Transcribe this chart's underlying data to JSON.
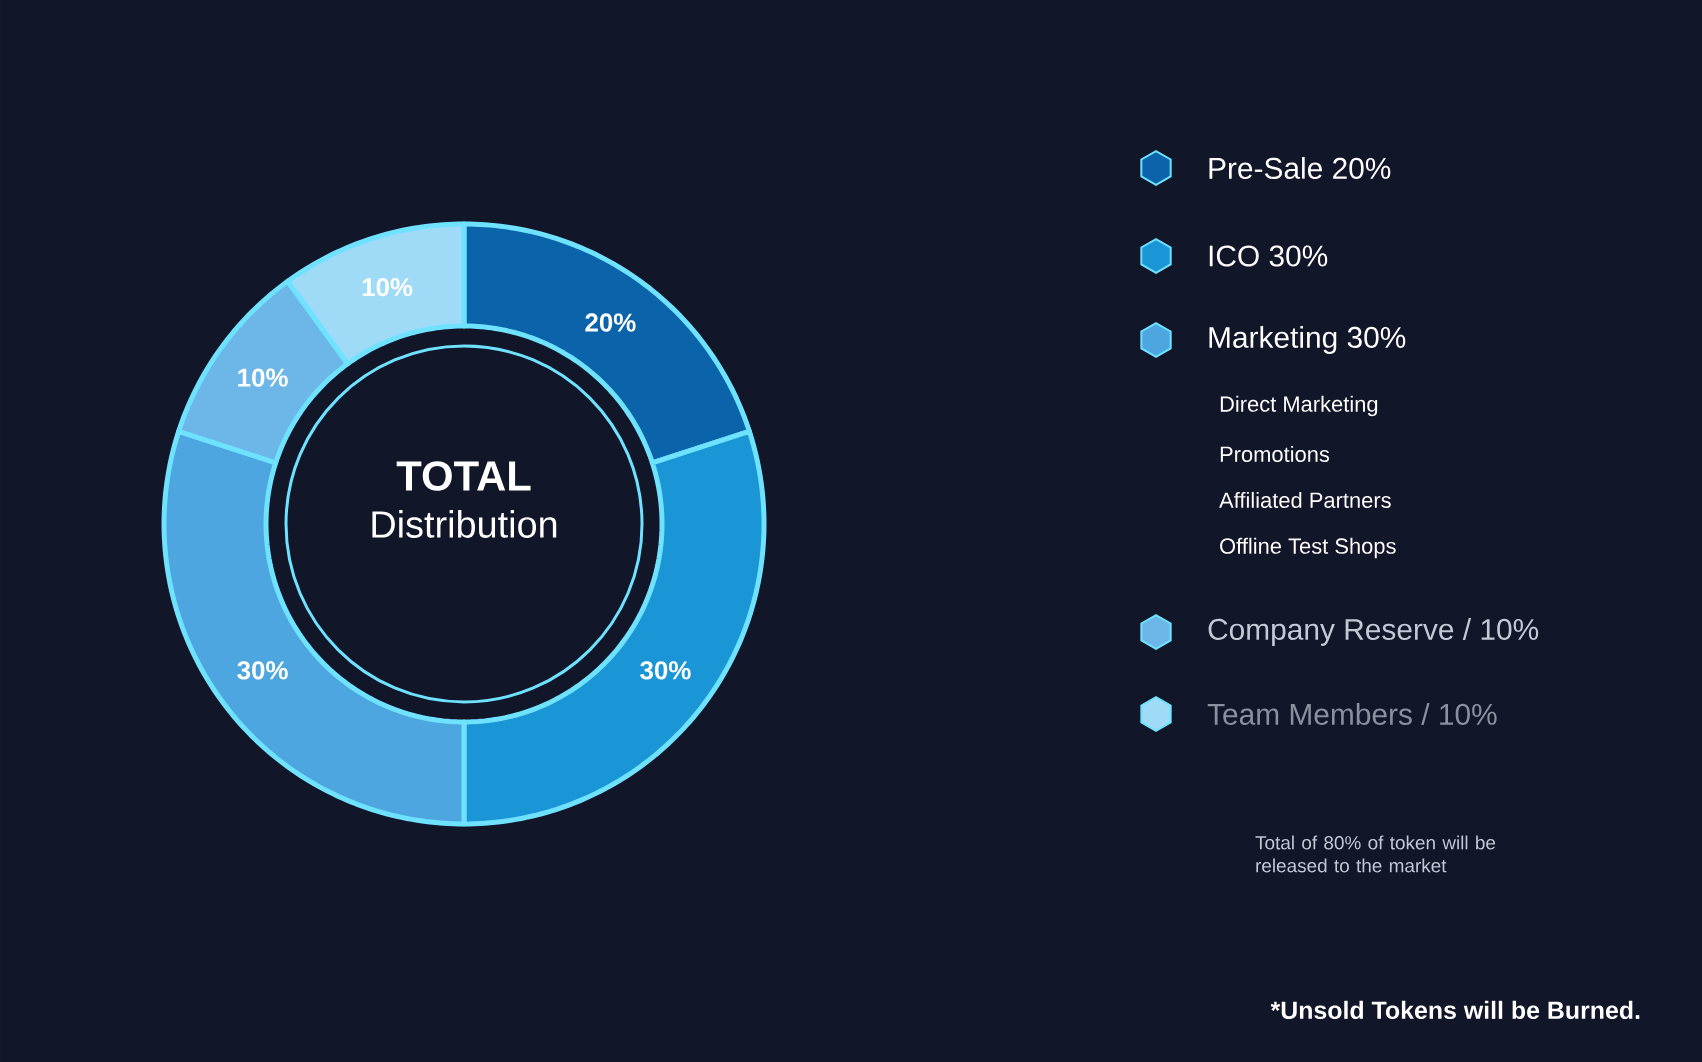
{
  "chart_data": {
    "type": "donut",
    "title": "TOTAL",
    "subtitle": "Distribution",
    "categories": [
      "Pre-Sale 20%",
      "ICO 30%",
      "Marketing 30%",
      "Company Reserve / 10%",
      "Team Members / 10%"
    ],
    "values": [
      20,
      30,
      30,
      10,
      10
    ],
    "value_labels": [
      "20%",
      "30%",
      "30%",
      "10%",
      "10%"
    ],
    "colors": [
      "#0b63aa",
      "#1a95d5",
      "#4ea6e0",
      "#6cb6e8",
      "#9fdaf7"
    ],
    "legend": "right",
    "annotations": [
      "Direct Marketing",
      "Promotions",
      "Affiliated Partners",
      "Offline Test Shops",
      "Total of 80% of token will be released to the market",
      "*Unsold Tokens will be Burned."
    ]
  }
}
